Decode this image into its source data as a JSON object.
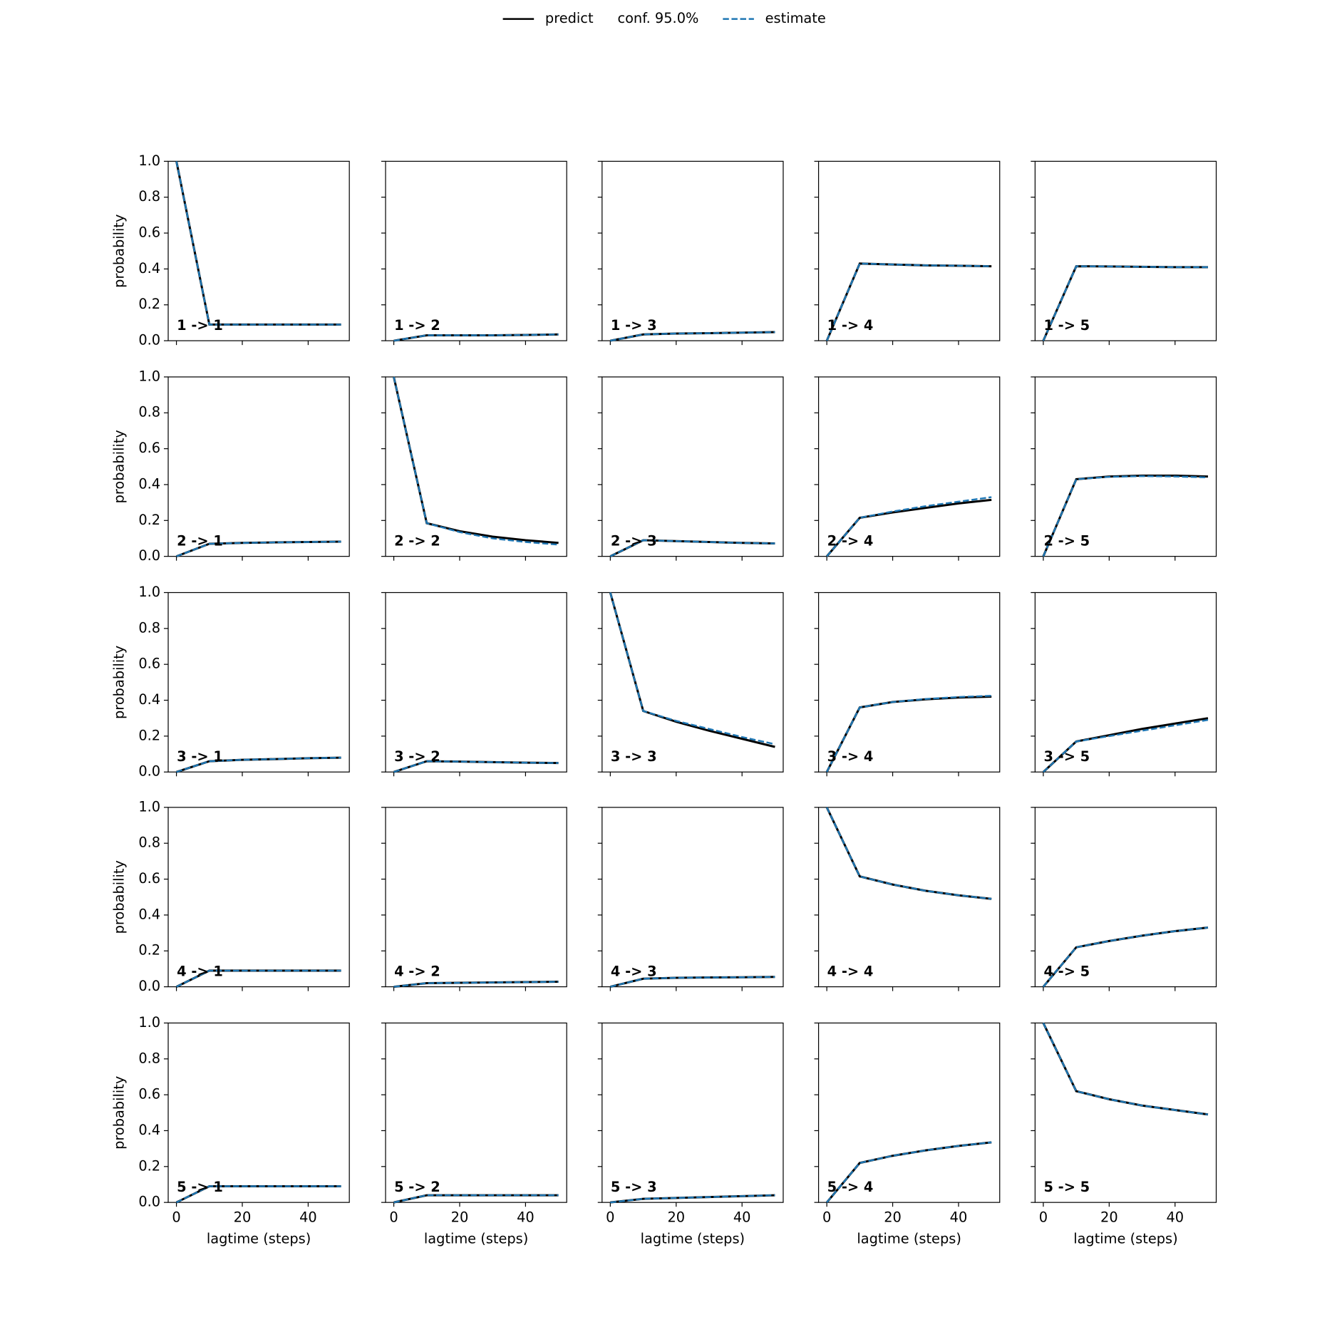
{
  "chart_data": {
    "type": "line",
    "xlabel": "lagtime (steps)",
    "ylabel": "probability",
    "x": [
      0,
      10,
      20,
      30,
      40,
      50
    ],
    "xlim": [
      -2.5,
      52.5
    ],
    "ylim": [
      0,
      1
    ],
    "xticks": [
      0,
      20,
      40
    ],
    "yticks": [
      {
        "value": 0,
        "label": "0.0"
      },
      {
        "value": 0.2,
        "label": "0.2"
      },
      {
        "value": 0.4,
        "label": "0.4"
      },
      {
        "value": 0.6,
        "label": "0.6"
      },
      {
        "value": 0.8,
        "label": "0.8"
      },
      {
        "value": 1,
        "label": "1.0"
      }
    ],
    "legend": "upper center",
    "series": [
      {
        "key": "predict",
        "name": "predict",
        "color": "#000000",
        "style": "solid"
      },
      {
        "name": "conf. 95.0%"
      },
      {
        "key": "estimate",
        "name": "estimate",
        "color": "#1f77b4",
        "style": "dashed"
      }
    ],
    "panels": [
      {
        "title": "1 -> 1",
        "predict": [
          1,
          0.09,
          0.09,
          0.09,
          0.09,
          0.09
        ],
        "estimate": [
          1,
          0.09,
          0.09,
          0.09,
          0.09,
          0.09
        ]
      },
      {
        "title": "1 -> 2",
        "predict": [
          0,
          0.03,
          0.03,
          0.03,
          0.032,
          0.035
        ],
        "estimate": [
          0,
          0.03,
          0.03,
          0.03,
          0.032,
          0.035
        ]
      },
      {
        "title": "1 -> 3",
        "predict": [
          0,
          0.035,
          0.04,
          0.042,
          0.045,
          0.048
        ],
        "estimate": [
          0,
          0.035,
          0.04,
          0.042,
          0.045,
          0.048
        ]
      },
      {
        "title": "1 -> 4",
        "predict": [
          0,
          0.43,
          0.425,
          0.42,
          0.418,
          0.415
        ],
        "estimate": [
          0,
          0.43,
          0.425,
          0.42,
          0.418,
          0.415
        ]
      },
      {
        "title": "1 -> 5",
        "predict": [
          0,
          0.415,
          0.414,
          0.412,
          0.41,
          0.41
        ],
        "estimate": [
          0,
          0.415,
          0.414,
          0.412,
          0.41,
          0.41
        ]
      },
      {
        "title": "2 -> 1",
        "predict": [
          0,
          0.07,
          0.075,
          0.078,
          0.08,
          0.082
        ],
        "estimate": [
          0,
          0.07,
          0.075,
          0.078,
          0.08,
          0.082
        ]
      },
      {
        "title": "2 -> 2",
        "predict": [
          1,
          0.185,
          0.14,
          0.11,
          0.09,
          0.075
        ],
        "estimate": [
          1,
          0.185,
          0.135,
          0.1,
          0.08,
          0.065
        ]
      },
      {
        "title": "2 -> 3",
        "predict": [
          0,
          0.09,
          0.085,
          0.08,
          0.075,
          0.072
        ],
        "estimate": [
          0,
          0.09,
          0.085,
          0.08,
          0.075,
          0.072
        ]
      },
      {
        "title": "2 -> 4",
        "predict": [
          0,
          0.215,
          0.245,
          0.27,
          0.295,
          0.315
        ],
        "estimate": [
          0,
          0.215,
          0.25,
          0.28,
          0.305,
          0.33
        ]
      },
      {
        "title": "2 -> 5",
        "predict": [
          0,
          0.43,
          0.445,
          0.45,
          0.45,
          0.445
        ],
        "estimate": [
          0,
          0.43,
          0.443,
          0.447,
          0.445,
          0.44
        ]
      },
      {
        "title": "3 -> 1",
        "predict": [
          0,
          0.06,
          0.068,
          0.072,
          0.077,
          0.08
        ],
        "estimate": [
          0,
          0.06,
          0.068,
          0.072,
          0.077,
          0.08
        ]
      },
      {
        "title": "3 -> 2",
        "predict": [
          0,
          0.06,
          0.058,
          0.055,
          0.052,
          0.05
        ],
        "estimate": [
          0,
          0.06,
          0.058,
          0.055,
          0.052,
          0.05
        ]
      },
      {
        "title": "3 -> 3",
        "predict": [
          1,
          0.34,
          0.28,
          0.23,
          0.185,
          0.14
        ],
        "estimate": [
          1,
          0.34,
          0.285,
          0.24,
          0.195,
          0.155
        ]
      },
      {
        "title": "3 -> 4",
        "predict": [
          0,
          0.36,
          0.39,
          0.405,
          0.415,
          0.42
        ],
        "estimate": [
          0,
          0.36,
          0.39,
          0.407,
          0.418,
          0.425
        ]
      },
      {
        "title": "3 -> 5",
        "predict": [
          0,
          0.17,
          0.205,
          0.24,
          0.27,
          0.3
        ],
        "estimate": [
          0,
          0.17,
          0.2,
          0.23,
          0.26,
          0.29
        ]
      },
      {
        "title": "4 -> 1",
        "predict": [
          0,
          0.09,
          0.09,
          0.09,
          0.09,
          0.09
        ],
        "estimate": [
          0,
          0.09,
          0.09,
          0.09,
          0.09,
          0.09
        ]
      },
      {
        "title": "4 -> 2",
        "predict": [
          0,
          0.02,
          0.022,
          0.024,
          0.026,
          0.028
        ],
        "estimate": [
          0,
          0.02,
          0.022,
          0.024,
          0.026,
          0.028
        ]
      },
      {
        "title": "4 -> 3",
        "predict": [
          0,
          0.045,
          0.05,
          0.052,
          0.053,
          0.055
        ],
        "estimate": [
          0,
          0.045,
          0.05,
          0.052,
          0.053,
          0.055
        ]
      },
      {
        "title": "4 -> 4",
        "predict": [
          1,
          0.615,
          0.57,
          0.535,
          0.51,
          0.49
        ],
        "estimate": [
          1,
          0.615,
          0.57,
          0.535,
          0.51,
          0.49
        ]
      },
      {
        "title": "4 -> 5",
        "predict": [
          0,
          0.22,
          0.255,
          0.285,
          0.31,
          0.33
        ],
        "estimate": [
          0,
          0.22,
          0.255,
          0.285,
          0.31,
          0.33
        ]
      },
      {
        "title": "5 -> 1",
        "predict": [
          0,
          0.09,
          0.09,
          0.09,
          0.09,
          0.09
        ],
        "estimate": [
          0,
          0.09,
          0.09,
          0.09,
          0.09,
          0.09
        ]
      },
      {
        "title": "5 -> 2",
        "predict": [
          0,
          0.04,
          0.04,
          0.04,
          0.04,
          0.04
        ],
        "estimate": [
          0,
          0.04,
          0.04,
          0.04,
          0.04,
          0.04
        ]
      },
      {
        "title": "5 -> 3",
        "predict": [
          0,
          0.02,
          0.025,
          0.03,
          0.035,
          0.04
        ],
        "estimate": [
          0,
          0.02,
          0.025,
          0.03,
          0.035,
          0.04
        ]
      },
      {
        "title": "5 -> 4",
        "predict": [
          0,
          0.22,
          0.26,
          0.29,
          0.315,
          0.335
        ],
        "estimate": [
          0,
          0.22,
          0.26,
          0.29,
          0.315,
          0.335
        ]
      },
      {
        "title": "5 -> 5",
        "predict": [
          1,
          0.62,
          0.575,
          0.54,
          0.515,
          0.49
        ],
        "estimate": [
          1,
          0.62,
          0.575,
          0.54,
          0.515,
          0.49
        ]
      }
    ]
  }
}
